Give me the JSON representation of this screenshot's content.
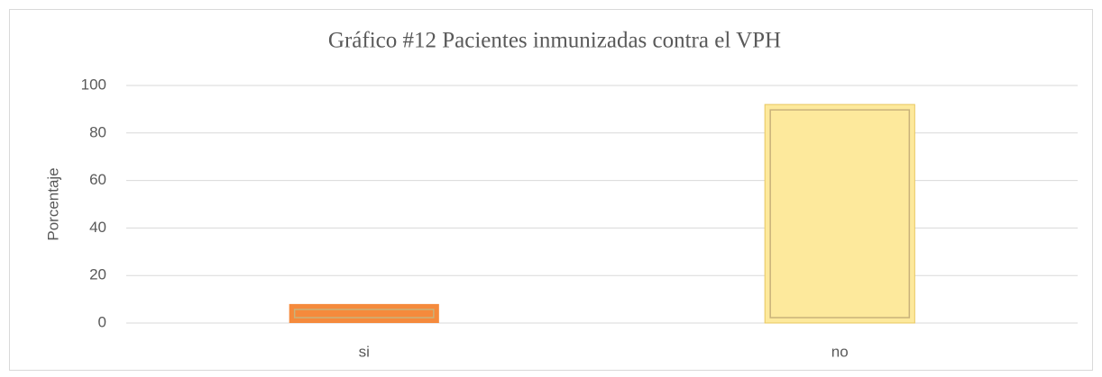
{
  "chart_data": {
    "type": "bar",
    "title": "Gráfico #12 Pacientes inmunizadas contra el VPH",
    "y_label": "Porcentaje",
    "categories": [
      "si",
      "no"
    ],
    "values": [
      8,
      92
    ],
    "colors": [
      "#f58a3c",
      "#fde99c"
    ],
    "ylim": [
      0,
      100
    ],
    "yticks": [
      0,
      20,
      40,
      60,
      80,
      100
    ],
    "grid": true
  }
}
